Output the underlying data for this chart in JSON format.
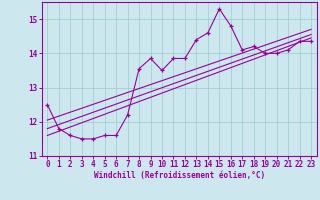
{
  "xlabel": "Windchill (Refroidissement éolien,°C)",
  "bg_color": "#cce8ee",
  "line_color": "#990099",
  "grid_color": "#99cccc",
  "x_data": [
    0,
    1,
    2,
    3,
    4,
    5,
    6,
    7,
    8,
    9,
    10,
    11,
    12,
    13,
    14,
    15,
    16,
    17,
    18,
    19,
    20,
    21,
    22,
    23
  ],
  "y_data": [
    12.5,
    11.8,
    11.6,
    11.5,
    11.5,
    11.6,
    11.6,
    12.2,
    13.55,
    13.85,
    13.5,
    13.85,
    13.85,
    14.4,
    14.6,
    15.3,
    14.8,
    14.1,
    14.2,
    14.0,
    14.0,
    14.1,
    14.35,
    14.35
  ],
  "reg_lines": [
    {
      "x": [
        0,
        23
      ],
      "y": [
        11.6,
        14.45
      ]
    },
    {
      "x": [
        0,
        23
      ],
      "y": [
        11.8,
        14.55
      ]
    },
    {
      "x": [
        0,
        23
      ],
      "y": [
        12.05,
        14.7
      ]
    }
  ],
  "xlim": [
    -0.5,
    23.5
  ],
  "ylim": [
    11.0,
    15.5
  ],
  "yticks": [
    11,
    12,
    13,
    14,
    15
  ],
  "xticks": [
    0,
    1,
    2,
    3,
    4,
    5,
    6,
    7,
    8,
    9,
    10,
    11,
    12,
    13,
    14,
    15,
    16,
    17,
    18,
    19,
    20,
    21,
    22,
    23
  ],
  "xlabel_fontsize": 5.5,
  "tick_fontsize": 5.5,
  "marker": "+"
}
